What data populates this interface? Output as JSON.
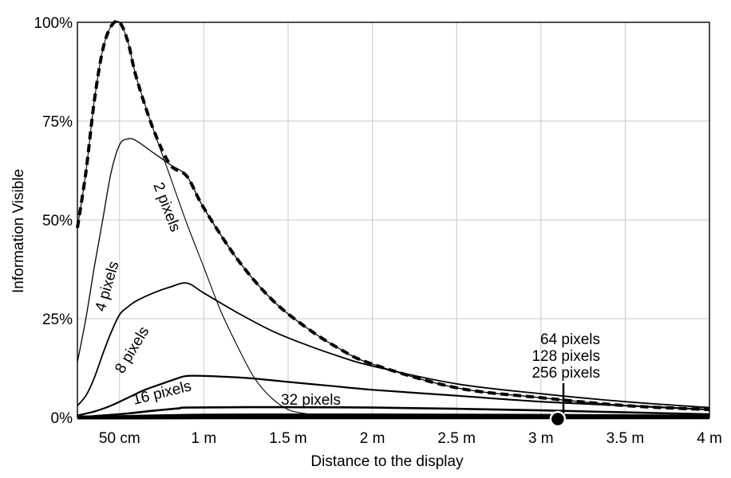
{
  "chart_data": {
    "type": "line",
    "title": "",
    "xlabel": "Distance to the display",
    "ylabel": "Information Visible",
    "x_unit": "m",
    "xlim": [
      0.25,
      4.0
    ],
    "ylim": [
      0,
      100
    ],
    "x_ticks": [
      {
        "value": 0.5,
        "label": "50 cm"
      },
      {
        "value": 1.0,
        "label": "1 m"
      },
      {
        "value": 1.5,
        "label": "1.5 m"
      },
      {
        "value": 2.0,
        "label": "2 m"
      },
      {
        "value": 2.5,
        "label": "2.5 m"
      },
      {
        "value": 3.0,
        "label": "3 m"
      },
      {
        "value": 3.5,
        "label": "3.5 m"
      },
      {
        "value": 4.0,
        "label": "4 m"
      }
    ],
    "y_ticks": [
      {
        "value": 0,
        "label": "0%"
      },
      {
        "value": 25,
        "label": "25%"
      },
      {
        "value": 50,
        "label": "50%"
      },
      {
        "value": 75,
        "label": "75%"
      },
      {
        "value": 100,
        "label": "100%"
      }
    ],
    "grid": true,
    "series": [
      {
        "name": "2 pixels",
        "x": [
          0.25,
          0.3,
          0.35,
          0.4,
          0.45,
          0.5,
          0.55,
          0.6,
          0.7,
          0.8,
          0.9,
          1.0,
          1.1,
          1.2,
          1.3,
          1.4,
          1.5,
          1.6,
          1.7,
          1.8,
          2.0
        ],
        "y": [
          48,
          62,
          80,
          93,
          99,
          100,
          95,
          86,
          73,
          61,
          49,
          38,
          27,
          18,
          10,
          5,
          2,
          1,
          0.5,
          0.2,
          0
        ]
      },
      {
        "name": "4 pixels",
        "x": [
          0.25,
          0.3,
          0.35,
          0.4,
          0.45,
          0.5,
          0.55,
          0.6,
          0.7,
          0.8,
          0.9,
          1.0,
          1.2,
          1.4,
          1.6,
          1.8,
          2.0,
          2.5,
          3.0,
          3.5,
          4.0
        ],
        "y": [
          14,
          25,
          38,
          50,
          62,
          69,
          70.5,
          70,
          67,
          64,
          61,
          53,
          40,
          30,
          23,
          17.5,
          13.5,
          7.5,
          5,
          3,
          2
        ]
      },
      {
        "name": "8 pixels",
        "x": [
          0.25,
          0.3,
          0.35,
          0.4,
          0.45,
          0.5,
          0.55,
          0.6,
          0.7,
          0.8,
          0.9,
          1.0,
          1.2,
          1.4,
          1.6,
          1.8,
          2.0,
          2.5,
          3.0,
          3.5,
          4.0
        ],
        "y": [
          3,
          5.5,
          10,
          16,
          21.5,
          26,
          28,
          29.5,
          31.5,
          33,
          34,
          31.5,
          26.5,
          22,
          18.5,
          15.5,
          13,
          8.5,
          6,
          4,
          2.5
        ]
      },
      {
        "name": "16 pixels",
        "x": [
          0.25,
          0.35,
          0.45,
          0.55,
          0.65,
          0.75,
          0.85,
          0.9,
          1.0,
          1.25,
          1.5,
          1.75,
          2.0,
          2.5,
          3.0,
          3.5,
          4.0
        ],
        "y": [
          0.5,
          1.5,
          3,
          5,
          7,
          8.5,
          10,
          10.5,
          10.5,
          10,
          9,
          8,
          7,
          5.5,
          4,
          3,
          2
        ]
      },
      {
        "name": "32 pixels",
        "x": [
          0.25,
          0.4,
          0.55,
          0.7,
          0.85,
          0.9,
          1.25,
          1.5,
          2.0,
          2.5,
          3.0,
          3.5,
          4.0
        ],
        "y": [
          0,
          0.5,
          1,
          1.7,
          2.3,
          2.5,
          2.6,
          2.6,
          2.5,
          2.2,
          1.8,
          1.3,
          0.8
        ]
      },
      {
        "name": "64 pixels",
        "x": [
          0.25,
          0.9,
          1.5,
          2.0,
          2.5,
          3.0,
          3.5,
          4.0
        ],
        "y": [
          0,
          0.6,
          0.7,
          0.7,
          0.65,
          0.6,
          0.5,
          0.4
        ]
      },
      {
        "name": "128 pixels",
        "x": [
          0.25,
          1.0,
          2.0,
          3.0,
          4.0
        ],
        "y": [
          0,
          0.2,
          0.2,
          0.2,
          0.15
        ]
      },
      {
        "name": "256 pixels",
        "x": [
          0.25,
          1.0,
          2.0,
          3.0,
          4.0
        ],
        "y": [
          0,
          0.05,
          0.05,
          0.05,
          0.05
        ]
      },
      {
        "name": "",
        "style": "dashed-envelope",
        "x": [
          0.25,
          0.3,
          0.35,
          0.4,
          0.45,
          0.5,
          0.55,
          0.6,
          0.7,
          0.8,
          0.9,
          1.0,
          1.2,
          1.4,
          1.6,
          1.8,
          2.0,
          2.5,
          3.0,
          3.5,
          4.0
        ],
        "y": [
          48,
          62,
          80,
          93,
          99,
          100,
          95,
          86,
          73,
          64,
          61,
          53,
          40,
          30,
          23,
          17.5,
          13.5,
          7.5,
          5,
          3,
          2
        ]
      }
    ],
    "marker": {
      "x": 3.1,
      "y": 0
    }
  }
}
